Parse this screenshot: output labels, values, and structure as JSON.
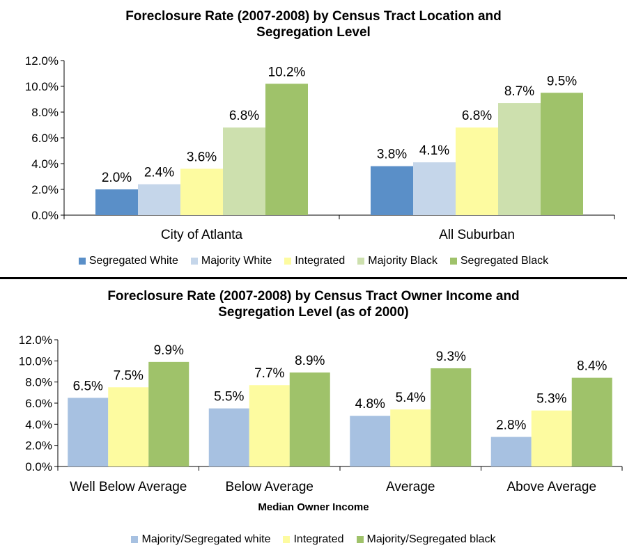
{
  "chart_data": [
    {
      "type": "bar",
      "title_lines": [
        "Foreclosure Rate (2007-2008) by Census Tract Location and",
        "Segregation Level"
      ],
      "categories": [
        "City of Atlanta",
        "All Suburban"
      ],
      "series": [
        {
          "name": "Segregated White",
          "color": "#5a8fc8",
          "values": [
            2.0,
            3.8
          ],
          "labels": [
            "2.0%",
            "3.8%"
          ]
        },
        {
          "name": "Majority White",
          "color": "#c5d6ea",
          "values": [
            2.4,
            4.1
          ],
          "labels": [
            "2.4%",
            "4.1%"
          ]
        },
        {
          "name": "Integrated",
          "color": "#fdfba0",
          "values": [
            3.6,
            6.8
          ],
          "labels": [
            "3.6%",
            "6.8%"
          ]
        },
        {
          "name": "Majority Black",
          "color": "#cde0ae",
          "values": [
            6.8,
            8.7
          ],
          "labels": [
            "6.8%",
            "8.7%"
          ]
        },
        {
          "name": "Segregated Black",
          "color": "#9fc26a",
          "values": [
            10.2,
            9.5
          ],
          "labels": [
            "10.2%",
            "9.5%"
          ]
        }
      ],
      "yticks": [
        "0.0%",
        "2.0%",
        "4.0%",
        "6.0%",
        "8.0%",
        "10.0%",
        "12.0%"
      ],
      "ylim": [
        0,
        12
      ],
      "xlabel": "",
      "ylabel": "",
      "legend": "bottom",
      "grid": false
    },
    {
      "type": "bar",
      "title_lines": [
        "Foreclosure Rate (2007-2008) by Census Tract Owner Income and",
        "Segregation Level (as of 2000)"
      ],
      "categories": [
        "Well Below Average",
        "Below Average",
        "Average",
        "Above Average"
      ],
      "series": [
        {
          "name": "Majority/Segregated white",
          "color": "#a7c1e1",
          "values": [
            6.5,
            5.5,
            4.8,
            2.8
          ],
          "labels": [
            "6.5%",
            "5.5%",
            "4.8%",
            "2.8%"
          ]
        },
        {
          "name": "Integrated",
          "color": "#fdfba0",
          "values": [
            7.5,
            7.7,
            5.4,
            5.3
          ],
          "labels": [
            "7.5%",
            "7.7%",
            "5.4%",
            "5.3%"
          ]
        },
        {
          "name": "Majority/Segregated black",
          "color": "#9fc26a",
          "values": [
            9.9,
            8.9,
            9.3,
            8.4
          ],
          "labels": [
            "9.9%",
            "8.9%",
            "9.3%",
            "8.4%"
          ]
        }
      ],
      "yticks": [
        "0.0%",
        "2.0%",
        "4.0%",
        "6.0%",
        "8.0%",
        "10.0%",
        "12.0%"
      ],
      "ylim": [
        0,
        12
      ],
      "xlabel": "Median Owner Income",
      "ylabel": "",
      "legend": "bottom",
      "grid": false
    }
  ]
}
